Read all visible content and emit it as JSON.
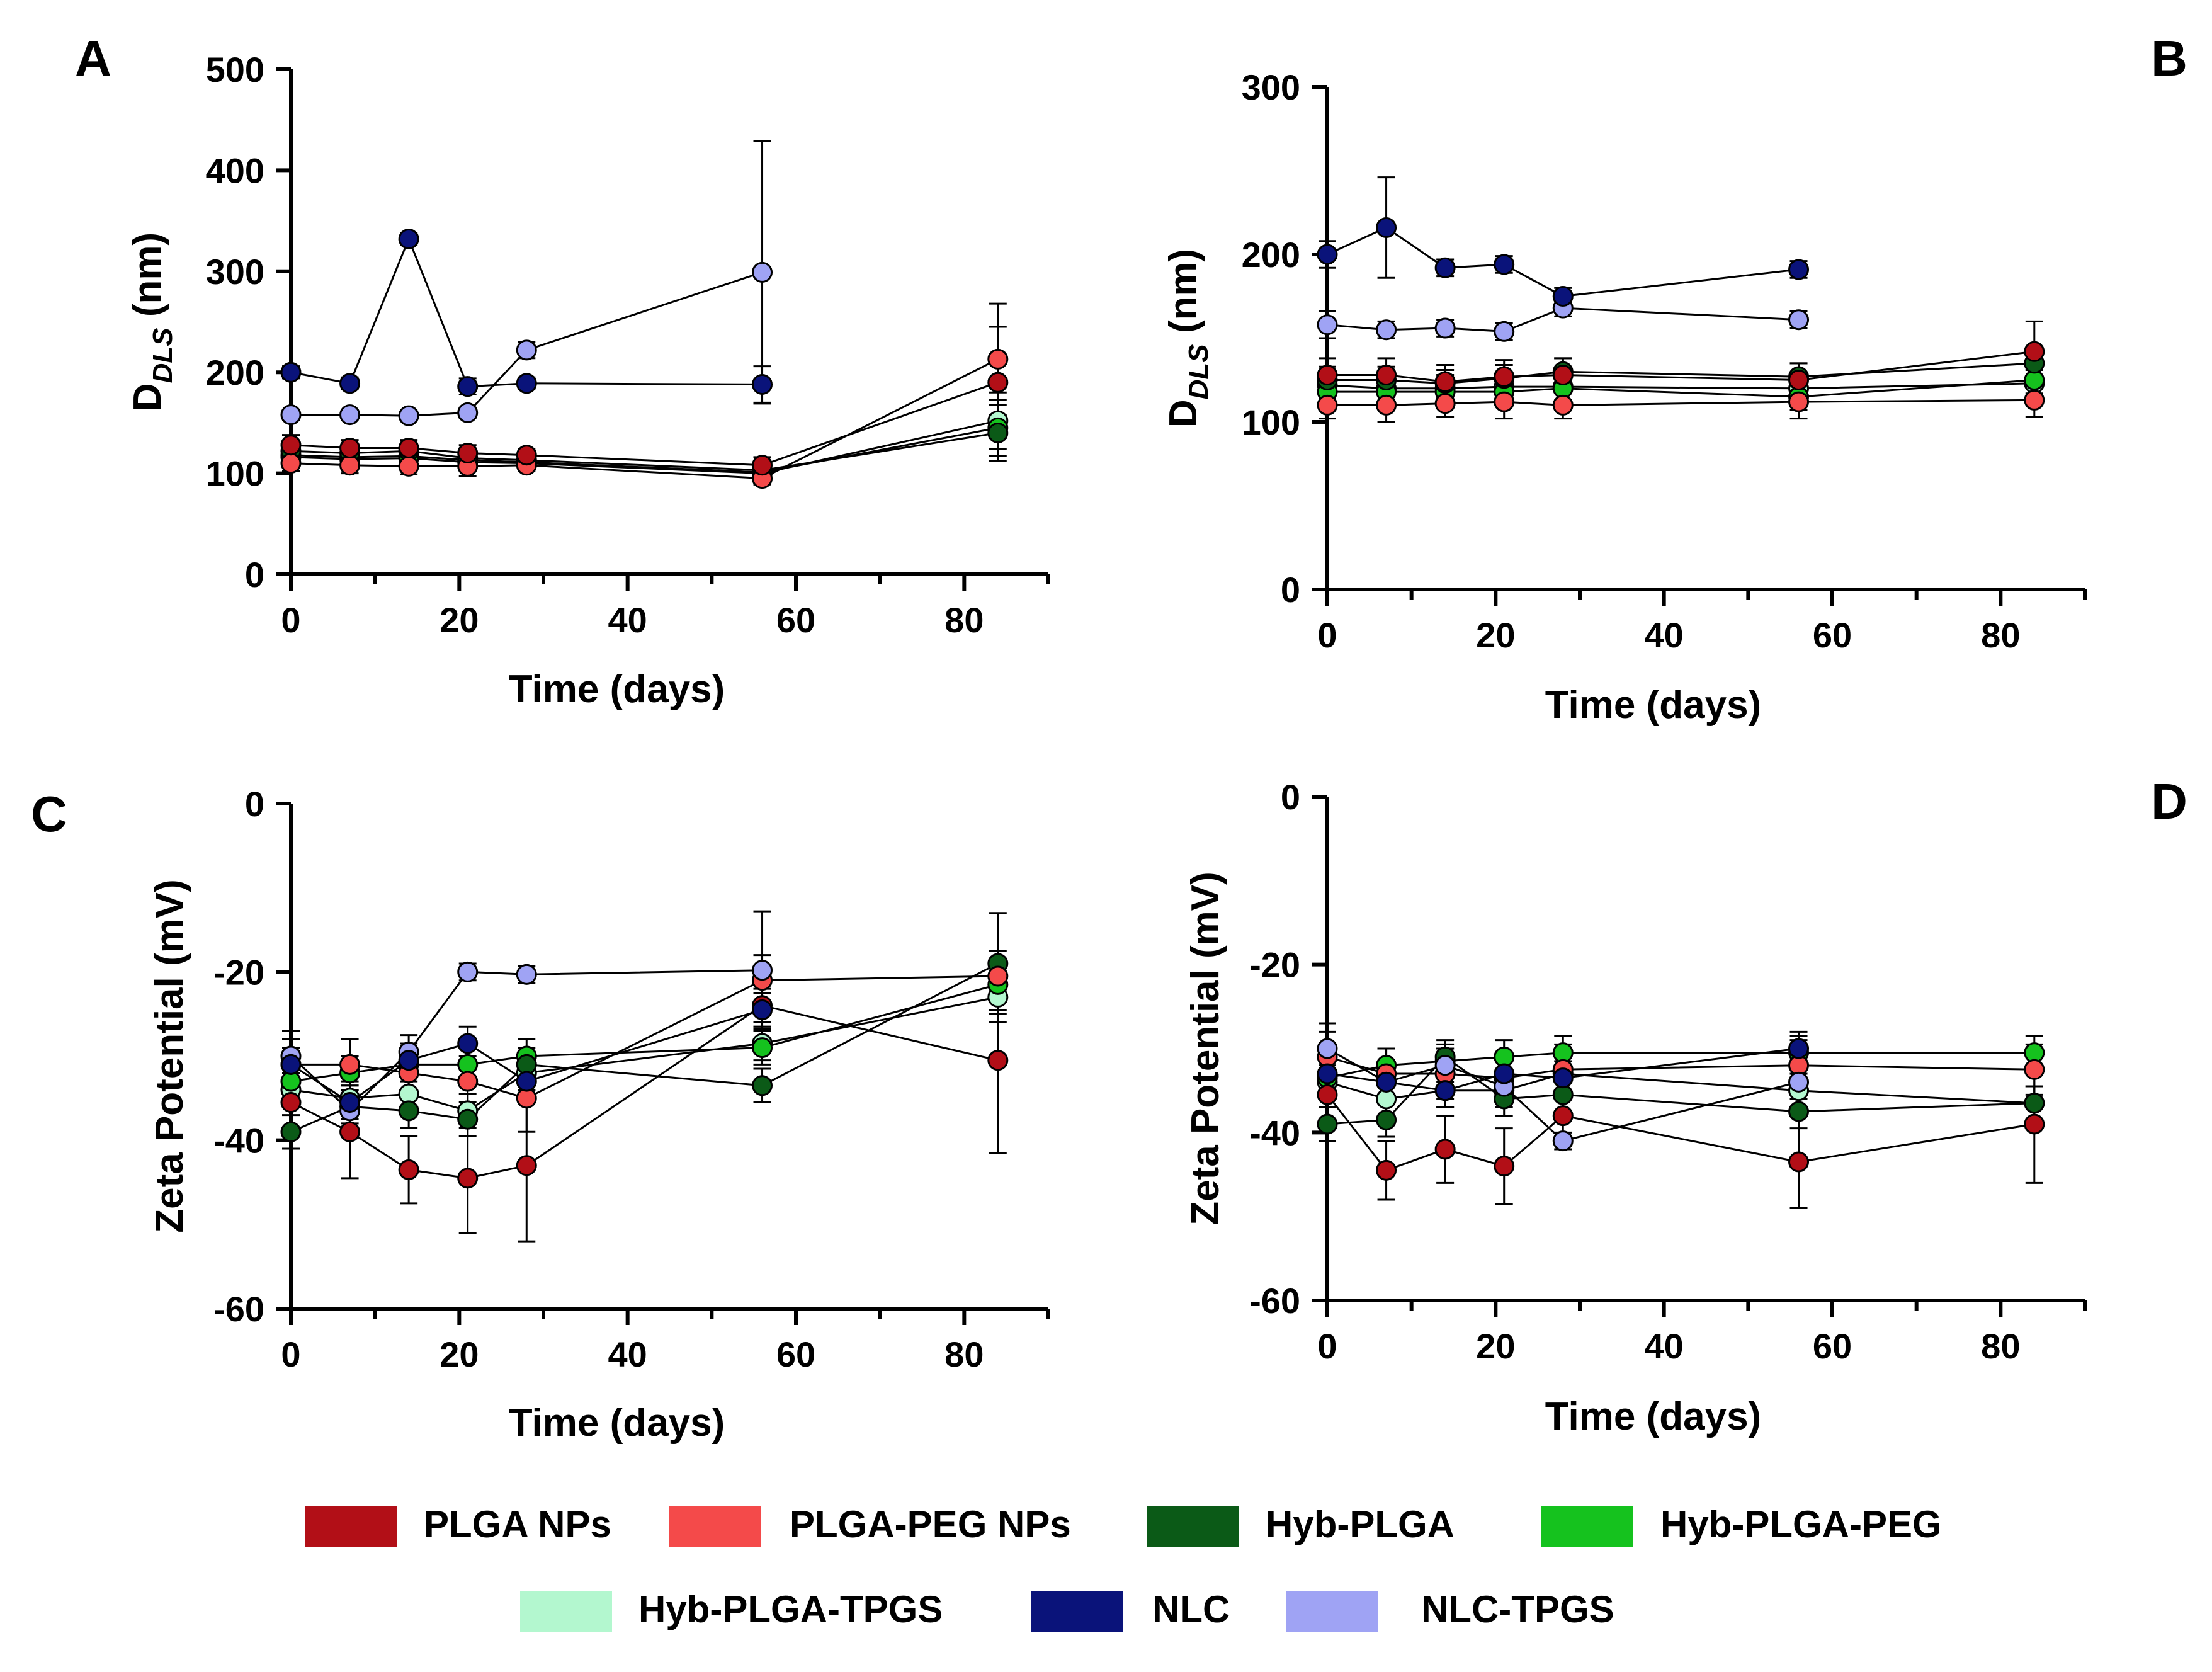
{
  "series_styles": [
    {
      "key": "plga",
      "name": "PLGA NPs",
      "color": "#B20F17"
    },
    {
      "key": "plgapeg",
      "name": "PLGA-PEG NPs",
      "color": "#F44A4A"
    },
    {
      "key": "hyb",
      "name": "Hyb-PLGA",
      "color": "#0B5A17"
    },
    {
      "key": "hybpeg",
      "name": "Hyb-PLGA-PEG",
      "color": "#15C21E"
    },
    {
      "key": "hybtpgs",
      "name": "Hyb-PLGA-TPGS",
      "color": "#B3F7CF"
    },
    {
      "key": "nlc",
      "name": "NLC",
      "color": "#0A137A"
    },
    {
      "key": "nlctpgs",
      "name": "NLC-TPGS",
      "color": "#9FA3F4"
    }
  ],
  "chart_data": [
    {
      "panel": "A",
      "type": "line",
      "xlabel": "Time (days)",
      "ylabel": "DDLS (nm)",
      "ylabel_main": "D",
      "ylabel_sub": "DLS",
      "ylabel_unit": " (nm)",
      "xlim": [
        0,
        90
      ],
      "ylim": [
        0,
        500
      ],
      "xticks": [
        0,
        20,
        40,
        60,
        80
      ],
      "yticks": [
        0,
        100,
        200,
        300,
        400,
        500
      ],
      "series": [
        {
          "key": "plga",
          "name": "PLGA NPs",
          "x": [
            0,
            7,
            14,
            21,
            28,
            56,
            84
          ],
          "values": [
            128,
            125,
            125,
            120,
            118,
            108,
            190
          ],
          "err": [
            10,
            8,
            8,
            8,
            6,
            8,
            55
          ]
        },
        {
          "key": "plgapeg",
          "name": "PLGA-PEG NPs",
          "x": [
            0,
            7,
            14,
            21,
            28,
            56,
            84
          ],
          "values": [
            110,
            108,
            107,
            107,
            108,
            95,
            213
          ],
          "err": [
            8,
            8,
            8,
            10,
            6,
            6,
            55
          ]
        },
        {
          "key": "hyb",
          "name": "Hyb-PLGA",
          "x": [
            0,
            7,
            14,
            21,
            28,
            56,
            84
          ],
          "values": [
            122,
            120,
            122,
            115,
            113,
            103,
            140
          ],
          "err": [
            8,
            6,
            8,
            6,
            6,
            6,
            28
          ]
        },
        {
          "key": "hybpeg",
          "name": "Hyb-PLGA-PEG",
          "x": [
            0,
            7,
            14,
            21,
            28,
            56,
            84
          ],
          "values": [
            118,
            116,
            117,
            113,
            111,
            101,
            145
          ],
          "err": [
            6,
            6,
            6,
            6,
            6,
            6,
            28
          ]
        },
        {
          "key": "hybtpgs",
          "name": "Hyb-PLGA-TPGS",
          "x": [
            0,
            7,
            14,
            21,
            28,
            56,
            84
          ],
          "values": [
            116,
            114,
            115,
            111,
            110,
            100,
            152
          ],
          "err": [
            6,
            6,
            6,
            6,
            6,
            6,
            28
          ]
        },
        {
          "key": "nlc",
          "name": "NLC",
          "x": [
            0,
            7,
            14,
            21,
            28,
            56
          ],
          "values": [
            200,
            189,
            332,
            186,
            189,
            188
          ],
          "err": [
            6,
            6,
            6,
            8,
            6,
            18
          ]
        },
        {
          "key": "nlctpgs",
          "name": "NLC-TPGS",
          "x": [
            0,
            7,
            14,
            21,
            28,
            56
          ],
          "values": [
            158,
            158,
            157,
            160,
            222,
            299
          ],
          "err": [
            5,
            5,
            5,
            5,
            8,
            130
          ]
        }
      ]
    },
    {
      "panel": "B",
      "type": "line",
      "xlabel": "Time (days)",
      "ylabel": "DDLS (nm)",
      "ylabel_main": "D",
      "ylabel_sub": "DLS",
      "ylabel_unit": " (nm)",
      "xlim": [
        0,
        90
      ],
      "ylim": [
        0,
        300
      ],
      "xticks": [
        0,
        20,
        40,
        60,
        80
      ],
      "yticks": [
        0,
        100,
        200,
        300
      ],
      "series": [
        {
          "key": "plga",
          "name": "PLGA NPs",
          "x": [
            0,
            7,
            14,
            21,
            28,
            56,
            84
          ],
          "values": [
            128,
            128,
            124,
            127,
            128,
            125,
            142
          ],
          "err": [
            10,
            10,
            10,
            10,
            10,
            10,
            18
          ]
        },
        {
          "key": "plgapeg",
          "name": "PLGA-PEG NPs",
          "x": [
            0,
            7,
            14,
            21,
            28,
            56,
            84
          ],
          "values": [
            110,
            110,
            111,
            112,
            110,
            112,
            113
          ],
          "err": [
            8,
            10,
            8,
            10,
            8,
            10,
            10
          ]
        },
        {
          "key": "hyb",
          "name": "Hyb-PLGA",
          "x": [
            0,
            7,
            14,
            21,
            28,
            56,
            84
          ],
          "values": [
            125,
            125,
            123,
            126,
            130,
            127,
            135
          ],
          "err": [
            8,
            8,
            8,
            8,
            8,
            8,
            10
          ]
        },
        {
          "key": "hybpeg",
          "name": "Hyb-PLGA-PEG",
          "x": [
            0,
            7,
            14,
            21,
            28,
            56,
            84
          ],
          "values": [
            118,
            118,
            118,
            118,
            120,
            115,
            125
          ],
          "err": [
            8,
            8,
            8,
            8,
            8,
            8,
            8
          ]
        },
        {
          "key": "hybtpgs",
          "name": "Hyb-PLGA-TPGS",
          "x": [
            0,
            7,
            14,
            21,
            28,
            56,
            84
          ],
          "values": [
            122,
            120,
            120,
            121,
            121,
            120,
            123
          ],
          "err": [
            8,
            8,
            8,
            8,
            8,
            8,
            8
          ]
        },
        {
          "key": "nlc",
          "name": "NLC",
          "x": [
            0,
            7,
            14,
            21,
            28,
            56
          ],
          "values": [
            200,
            216,
            192,
            194,
            175,
            191
          ],
          "err": [
            8,
            30,
            5,
            5,
            5,
            5
          ]
        },
        {
          "key": "nlctpgs",
          "name": "NLC-TPGS",
          "x": [
            0,
            7,
            14,
            21,
            28,
            56
          ],
          "values": [
            158,
            155,
            156,
            154,
            168,
            161
          ],
          "err": [
            8,
            5,
            5,
            5,
            5,
            5
          ]
        }
      ]
    },
    {
      "panel": "C",
      "type": "line",
      "xlabel": "Time (days)",
      "ylabel": "Zeta Potential (mV)",
      "xlim": [
        0,
        90
      ],
      "ylim": [
        -60,
        0
      ],
      "xticks": [
        0,
        20,
        40,
        60,
        80
      ],
      "yticks": [
        -60,
        -40,
        -20,
        0
      ],
      "series": [
        {
          "key": "plga",
          "name": "PLGA NPs",
          "x": [
            0,
            7,
            14,
            21,
            28,
            56,
            84
          ],
          "values": [
            -35.5,
            -39,
            -43.5,
            -44.5,
            -43,
            -24,
            -30.5
          ],
          "err": [
            3,
            5.5,
            4,
            6.5,
            9,
            2,
            11
          ]
        },
        {
          "key": "plgapeg",
          "name": "PLGA-PEG NPs",
          "x": [
            0,
            7,
            14,
            21,
            28,
            56,
            84
          ],
          "values": [
            -31,
            -31,
            -32,
            -33,
            -35,
            -21,
            -20.5
          ],
          "err": [
            3,
            3,
            3,
            3,
            4,
            3,
            3
          ]
        },
        {
          "key": "hyb",
          "name": "Hyb-PLGA",
          "x": [
            0,
            7,
            14,
            21,
            28,
            56,
            84
          ],
          "values": [
            -39,
            -36,
            -36.5,
            -37.5,
            -31,
            -33.5,
            -19
          ],
          "err": [
            2,
            2,
            2,
            2,
            2,
            2,
            6
          ]
        },
        {
          "key": "hybpeg",
          "name": "Hyb-PLGA-PEG",
          "x": [
            0,
            7,
            14,
            21,
            28,
            56,
            84
          ],
          "values": [
            -33,
            -32,
            -31,
            -31,
            -30,
            -29,
            -21.5
          ],
          "err": [
            2,
            2,
            2,
            2,
            2,
            2,
            3
          ]
        },
        {
          "key": "hybtpgs",
          "name": "Hyb-PLGA-TPGS",
          "x": [
            0,
            7,
            14,
            21,
            28,
            56,
            84
          ],
          "values": [
            -34,
            -35,
            -34.5,
            -36.5,
            -32,
            -28.5,
            -23
          ],
          "err": [
            2,
            2,
            2,
            2,
            2,
            2,
            3
          ]
        },
        {
          "key": "nlc",
          "name": "NLC",
          "x": [
            0,
            7,
            14,
            21,
            28,
            56
          ],
          "values": [
            -31,
            -35.5,
            -30.5,
            -28.5,
            -33,
            -24.5
          ],
          "err": [
            2,
            2,
            2,
            2,
            2,
            2
          ]
        },
        {
          "key": "nlctpgs",
          "name": "NLC-TPGS",
          "x": [
            0,
            7,
            14,
            21,
            28,
            56
          ],
          "values": [
            -30,
            -36.5,
            -29.5,
            -20,
            -20.3,
            -19.8
          ],
          "err": [
            3,
            2,
            2,
            1,
            1,
            7
          ]
        }
      ]
    },
    {
      "panel": "D",
      "type": "line",
      "xlabel": "Time (days)",
      "ylabel": "Zeta Potential (mV)",
      "xlim": [
        0,
        90
      ],
      "ylim": [
        -60,
        0
      ],
      "xticks": [
        0,
        20,
        40,
        60,
        80
      ],
      "yticks": [
        -60,
        -40,
        -20,
        0
      ],
      "series": [
        {
          "key": "plga",
          "name": "PLGA NPs",
          "x": [
            0,
            7,
            14,
            21,
            28,
            56,
            84
          ],
          "values": [
            -35.5,
            -44.5,
            -42,
            -44,
            -38,
            -43.5,
            -39
          ],
          "err": [
            3,
            3.5,
            4,
            4.5,
            3,
            5.5,
            7
          ]
        },
        {
          "key": "plgapeg",
          "name": "PLGA-PEG NPs",
          "x": [
            0,
            7,
            14,
            21,
            28,
            56,
            84
          ],
          "values": [
            -31,
            -33,
            -33,
            -33.5,
            -32.5,
            -32,
            -32.5
          ],
          "err": [
            3,
            3,
            3,
            3,
            3,
            3,
            3
          ]
        },
        {
          "key": "hyb",
          "name": "Hyb-PLGA",
          "x": [
            0,
            7,
            14,
            21,
            28,
            56,
            84
          ],
          "values": [
            -39,
            -38.5,
            -31,
            -36,
            -35.5,
            -37.5,
            -36.5
          ],
          "err": [
            2,
            2,
            2,
            2,
            2,
            2,
            2
          ]
        },
        {
          "key": "hybpeg",
          "name": "Hyb-PLGA-PEG",
          "x": [
            0,
            7,
            14,
            21,
            28,
            56,
            84
          ],
          "values": [
            -33.5,
            -32,
            -31.5,
            -31,
            -30.5,
            -30.5,
            -30.5
          ],
          "err": [
            2,
            2,
            2,
            2,
            2,
            2,
            2
          ]
        },
        {
          "key": "hybtpgs",
          "name": "Hyb-PLGA-TPGS",
          "x": [
            0,
            7,
            14,
            21,
            28,
            56,
            84
          ],
          "values": [
            -34,
            -36,
            -35,
            -35,
            -33,
            -35,
            -36.5
          ],
          "err": [
            2,
            2,
            2,
            2,
            2,
            2,
            2
          ]
        },
        {
          "key": "nlc",
          "name": "NLC",
          "x": [
            0,
            7,
            14,
            21,
            28,
            56
          ],
          "values": [
            -33,
            -34,
            -35,
            -33,
            -33.5,
            -30
          ],
          "err": [
            2,
            2,
            2,
            2,
            2,
            2
          ]
        },
        {
          "key": "nlctpgs",
          "name": "NLC-TPGS",
          "x": [
            0,
            7,
            14,
            21,
            28,
            56
          ],
          "values": [
            -30,
            -34,
            -32,
            -34.5,
            -41,
            -34
          ],
          "err": [
            3,
            2,
            2,
            2,
            1,
            2
          ]
        }
      ]
    }
  ],
  "legend": {
    "rows": [
      [
        {
          "key": "plga",
          "label": "PLGA NPs"
        },
        {
          "key": "plgapeg",
          "label": "PLGA-PEG NPs"
        },
        {
          "key": "hyb",
          "label": "Hyb-PLGA"
        },
        {
          "key": "hybpeg",
          "label": "Hyb-PLGA-PEG"
        }
      ],
      [
        {
          "key": "hybtpgs",
          "label": "Hyb-PLGA-TPGS"
        },
        {
          "key": "nlc",
          "label": "NLC"
        },
        {
          "key": "nlctpgs",
          "label": "NLC-TPGS"
        }
      ]
    ]
  }
}
